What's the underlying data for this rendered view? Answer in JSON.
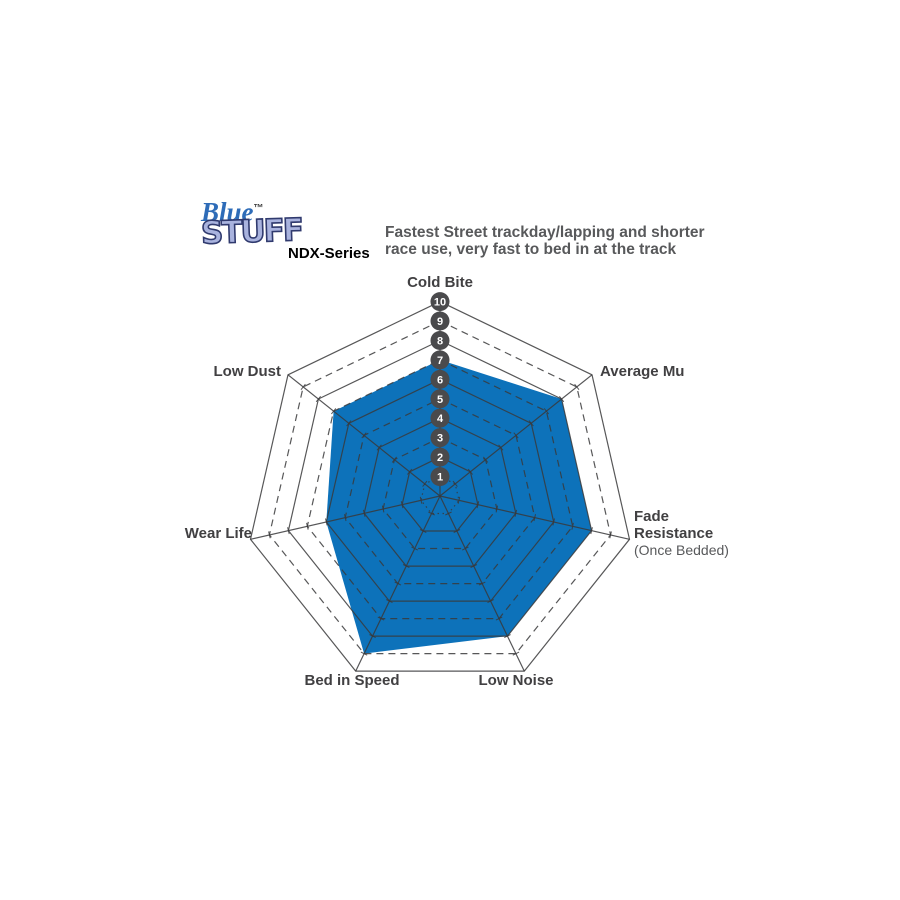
{
  "header": {
    "logo": {
      "line1": "Blue",
      "trademark": "™",
      "line2": "STUFF",
      "series": "NDX-Series"
    },
    "description_line1": "Fastest Street trackday/lapping and shorter",
    "description_line2": "race use, very fast to bed in at the track"
  },
  "chart_data": {
    "type": "radar",
    "axes": [
      {
        "label": "Cold Bite",
        "value": 7
      },
      {
        "label": "Average Mu",
        "value": 8
      },
      {
        "label": "Fade Resistance",
        "sublabel": "(Once Bedded)",
        "value": 8
      },
      {
        "label": "Low Noise",
        "value": 8
      },
      {
        "label": "Bed in Speed",
        "value": 9
      },
      {
        "label": "Wear Life",
        "value": 6
      },
      {
        "label": "Low Dust",
        "value": 7
      }
    ],
    "series": [
      {
        "name": "Bluestuff NDX",
        "values": [
          7,
          8,
          8,
          8,
          9,
          6,
          7
        ]
      }
    ],
    "scale": {
      "min": 0,
      "max": 10,
      "ticks": [
        1,
        2,
        3,
        4,
        5,
        6,
        7,
        8,
        9,
        10
      ]
    },
    "layout_hints": {
      "grid": "concentric heptagons, even rings solid, odd rings dashed, ring 1 dotted",
      "legend": "none"
    },
    "colors": {
      "fill": "#0D72BA",
      "grid": "#39393B",
      "badge": "#4A4A4C",
      "badge_text": "#FFFFFF",
      "label": "#414042",
      "logo_blue": "#2E6CB8",
      "logo_stuff_fill": "#A9B3DE",
      "logo_stuff_outline": "#303A6E",
      "description_text": "#58595B"
    }
  }
}
